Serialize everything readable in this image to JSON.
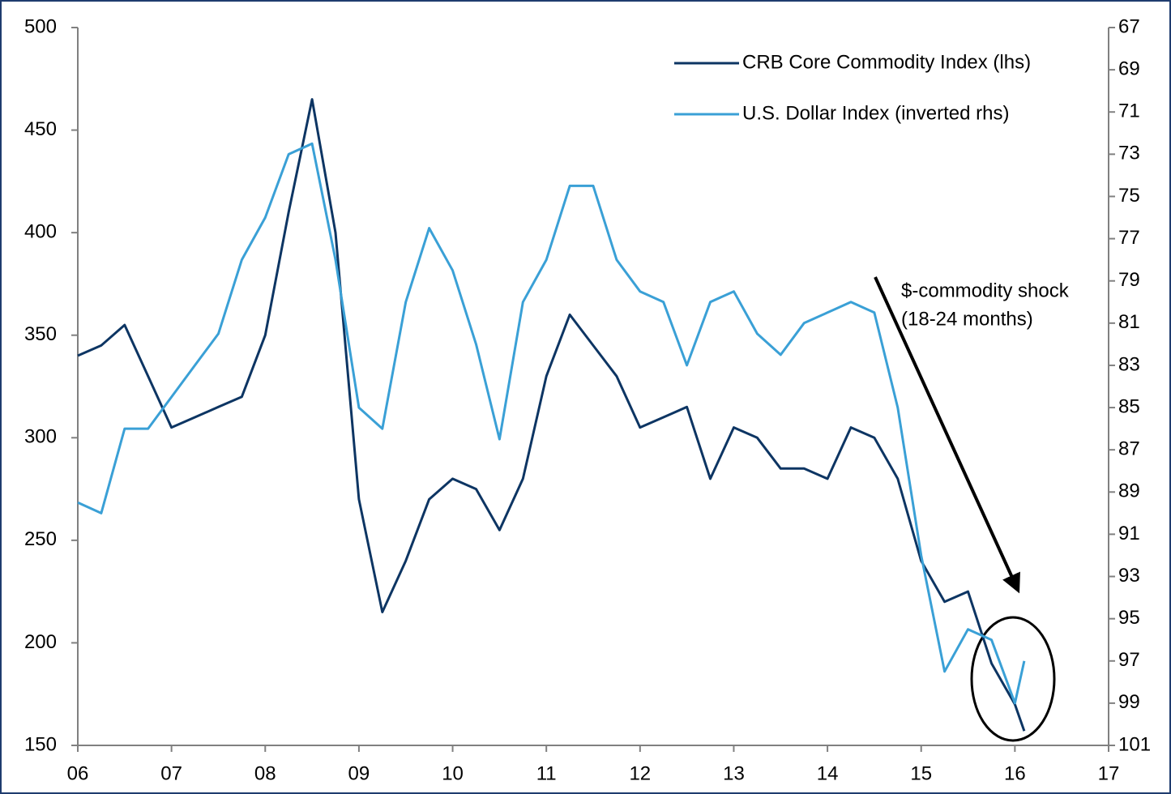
{
  "chart_data": {
    "type": "line",
    "x": [
      2006.0,
      2006.25,
      2006.5,
      2006.75,
      2007.0,
      2007.25,
      2007.5,
      2007.75,
      2008.0,
      2008.25,
      2008.5,
      2008.75,
      2009.0,
      2009.25,
      2009.5,
      2009.75,
      2010.0,
      2010.25,
      2010.5,
      2010.75,
      2011.0,
      2011.25,
      2011.5,
      2011.75,
      2012.0,
      2012.25,
      2012.5,
      2012.75,
      2013.0,
      2013.25,
      2013.5,
      2013.75,
      2014.0,
      2014.25,
      2014.5,
      2014.75,
      2015.0,
      2015.25,
      2015.5,
      2015.75,
      2016.0,
      2016.1
    ],
    "series": [
      {
        "name": "CRB Core Commodity Index (lhs)",
        "color": "#0d3563",
        "axis": "y",
        "values": [
          340,
          345,
          355,
          330,
          305,
          310,
          315,
          320,
          350,
          410,
          465,
          400,
          270,
          215,
          240,
          270,
          280,
          275,
          255,
          280,
          330,
          360,
          345,
          330,
          305,
          310,
          315,
          280,
          305,
          300,
          285,
          285,
          280,
          305,
          300,
          280,
          240,
          220,
          225,
          190,
          170,
          157
        ]
      },
      {
        "name": "U.S. Dollar Index (inverted rhs)",
        "color": "#3aa0d6",
        "axis": "y2",
        "values": [
          89.5,
          90,
          86,
          86,
          84.5,
          83,
          81.5,
          78,
          76,
          73,
          72.5,
          78,
          85,
          86,
          80,
          76.5,
          78.5,
          82,
          86.5,
          80,
          78,
          74.5,
          74.5,
          78,
          79.5,
          80,
          83,
          80,
          79.5,
          81.5,
          82.5,
          81,
          80.5,
          80,
          80.5,
          85,
          92,
          97.5,
          95.5,
          96,
          99,
          97
        ]
      }
    ],
    "xlim": [
      2006,
      2017
    ],
    "xticks": [
      {
        "value": 2006,
        "label": "06"
      },
      {
        "value": 2007,
        "label": "07"
      },
      {
        "value": 2008,
        "label": "08"
      },
      {
        "value": 2009,
        "label": "09"
      },
      {
        "value": 2010,
        "label": "10"
      },
      {
        "value": 2011,
        "label": "11"
      },
      {
        "value": 2012,
        "label": "12"
      },
      {
        "value": 2013,
        "label": "13"
      },
      {
        "value": 2014,
        "label": "14"
      },
      {
        "value": 2015,
        "label": "15"
      },
      {
        "value": 2016,
        "label": "16"
      },
      {
        "value": 2017,
        "label": "17"
      }
    ],
    "ylim": [
      150,
      500
    ],
    "yticks": [
      150,
      200,
      250,
      300,
      350,
      400,
      450,
      500
    ],
    "y2lim": [
      101,
      67
    ],
    "y2ticks": [
      67,
      69,
      71,
      73,
      75,
      77,
      79,
      81,
      83,
      85,
      87,
      89,
      91,
      93,
      95,
      97,
      99,
      101
    ],
    "legend": "upper right",
    "annotations": [
      "$-commodity shock",
      "(18-24 months)"
    ]
  }
}
